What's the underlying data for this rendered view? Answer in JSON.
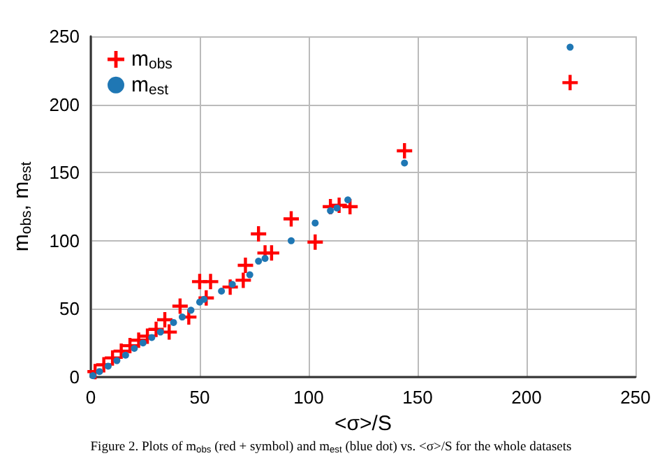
{
  "chart_data": {
    "type": "scatter",
    "xlabel": "<σ>/S",
    "ylabel": "m$_{obs}$, m$_{est}$",
    "xlim": [
      0,
      250
    ],
    "xticks": [
      0,
      50,
      100,
      150,
      200,
      250
    ],
    "ylim": [
      0,
      250
    ],
    "yticks": [
      0,
      50,
      100,
      150,
      200,
      250
    ],
    "grid": true,
    "legend": "top left",
    "annotations": [
      "Figure 2. Plots of m$_{obs}$ (red + symbol) and m$_{est}$ (blue dot) vs. <σ>/S for the whole datasets"
    ],
    "series": [
      {
        "name": "m$_{obs}$",
        "color": "#ff0000",
        "marker": "cross",
        "x": [
          2,
          6,
          10,
          14,
          18,
          22,
          26,
          30,
          34,
          36,
          41,
          45,
          50,
          53,
          55,
          64,
          70,
          71,
          77,
          80,
          83,
          92,
          103,
          110,
          114,
          119,
          144,
          220
        ],
        "values": [
          4,
          9,
          14,
          19,
          23,
          27,
          30,
          35,
          42,
          33,
          52,
          44,
          70,
          58,
          70,
          66,
          71,
          82,
          105,
          91,
          91,
          116,
          99,
          125,
          126,
          125,
          166,
          216
        ]
      },
      {
        "name": "m$_{est}$",
        "color": "#1f77b4",
        "marker": "circle",
        "x": [
          1,
          4,
          8,
          12,
          16,
          20,
          24,
          28,
          32,
          38,
          42,
          46,
          50,
          52,
          60,
          65,
          73,
          77,
          80,
          92,
          103,
          110,
          113,
          118,
          144,
          220
        ],
        "values": [
          1,
          4,
          8,
          12,
          16,
          21,
          25,
          29,
          33,
          40,
          44,
          49,
          55,
          57,
          63,
          68,
          75,
          85,
          87,
          100,
          113,
          122,
          124,
          130,
          157,
          242
        ]
      }
    ]
  }
}
